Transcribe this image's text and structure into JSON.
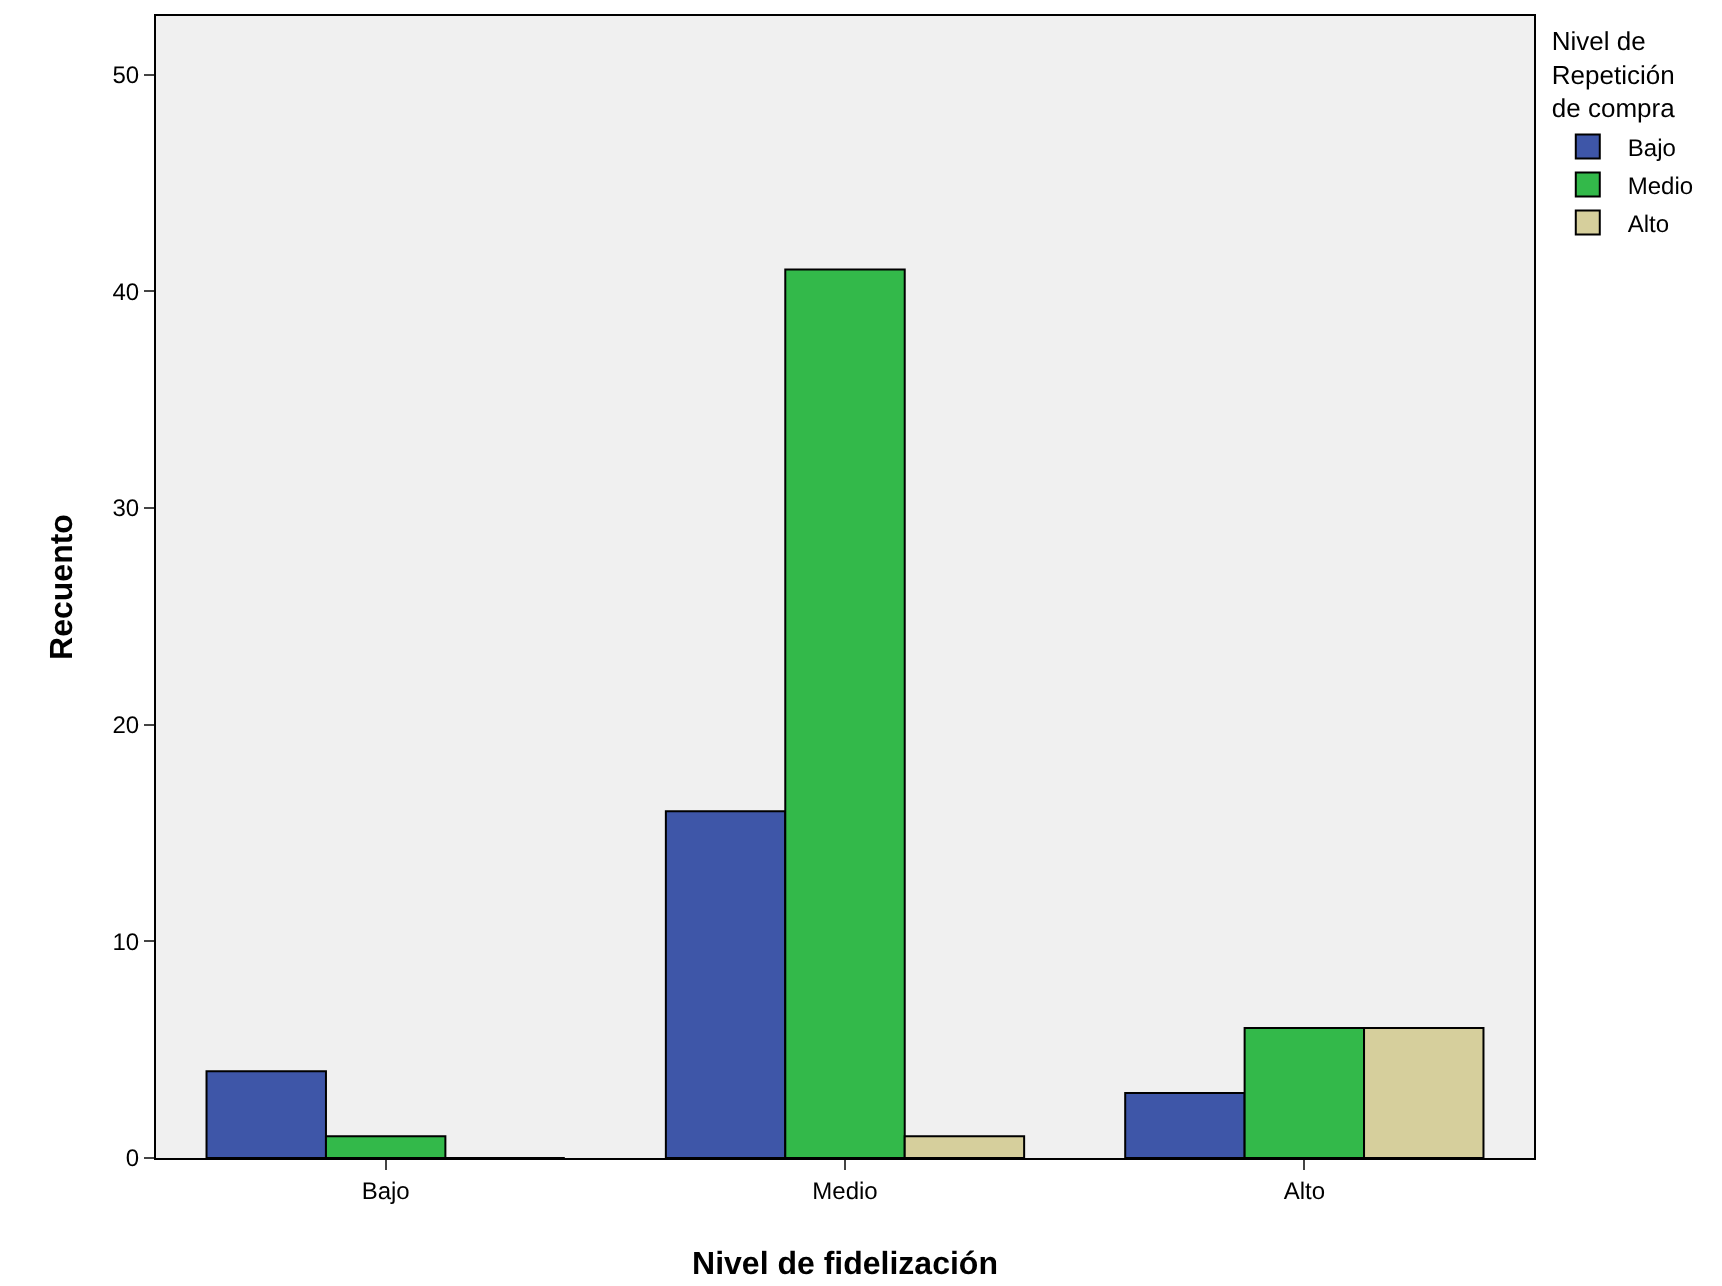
{
  "chart_data": {
    "type": "bar",
    "xlabel": "Nivel de fidelización",
    "ylabel": "Recuento",
    "legend_title": "Nivel de Repetición de compra",
    "categories": [
      "Bajo",
      "Medio",
      "Alto"
    ],
    "series": [
      {
        "name": "Bajo",
        "color": "#3e56a8",
        "values": [
          4,
          16,
          3
        ]
      },
      {
        "name": "Medio",
        "color": "#33b94a",
        "values": [
          1,
          41,
          6
        ]
      },
      {
        "name": "Alto",
        "color": "#d6cf9c",
        "values": [
          0,
          1,
          6
        ]
      }
    ],
    "ylim": [
      0,
      52.7
    ],
    "yticks": [
      0,
      10,
      20,
      30,
      40,
      50
    ],
    "grid": false,
    "legend": "top right"
  }
}
